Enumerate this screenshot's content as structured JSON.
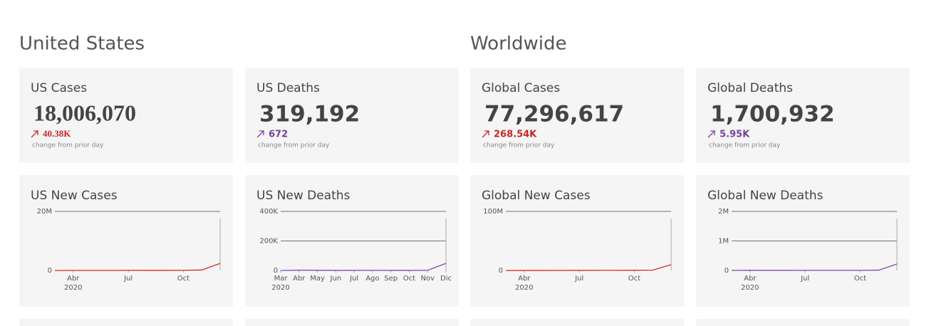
{
  "sections": [
    {
      "title": "United States"
    },
    {
      "title": "Worldwide"
    }
  ],
  "kpis": [
    {
      "title": "US Cases",
      "value": "18,006,070",
      "change": "40.38K",
      "note": "change from prior day",
      "color": "#c62828"
    },
    {
      "title": "US Deaths",
      "value": "319,192",
      "change": "672",
      "note": "change from prior day",
      "color": "#7b3fa0"
    },
    {
      "title": "Global Cases",
      "value": "77,296,617",
      "change": "268.54K",
      "note": "change from prior day",
      "color": "#c62828"
    },
    {
      "title": "Global Deaths",
      "value": "1,700,932",
      "change": "5.95K",
      "note": "change from prior day",
      "color": "#7b3fa0"
    }
  ],
  "chart_data": [
    {
      "type": "line",
      "title": "US New Cases",
      "x": [
        "2020-03",
        "2020-04",
        "2020-05",
        "2020-06",
        "2020-07",
        "2020-08",
        "2020-09",
        "2020-10",
        "2020-11",
        "2020-12"
      ],
      "series": [
        {
          "color": "#d62c1a",
          "values": [
            0,
            30000,
            25000,
            25000,
            65000,
            45000,
            40000,
            60000,
            160000,
            2400000
          ]
        }
      ],
      "xlim": [
        "2020-03",
        "2020-12"
      ],
      "xticks": [
        {
          "value": "2020-04",
          "label": "Abr"
        },
        {
          "value": "2020-07",
          "label": "Jul"
        },
        {
          "value": "2020-10",
          "label": "Oct"
        }
      ],
      "x_year_label": "2020",
      "ylim": [
        0,
        20000000
      ],
      "yticks": [
        0,
        {
          "value": 20000000,
          "label": "20M"
        }
      ]
    },
    {
      "type": "line",
      "title": "US New Deaths",
      "x": [
        "2020-03",
        "2020-04",
        "2020-05",
        "2020-06",
        "2020-07",
        "2020-08",
        "2020-09",
        "2020-10",
        "2020-11",
        "2020-12"
      ],
      "series": [
        {
          "color": "#7e4bb0",
          "values": [
            0,
            2000,
            1500,
            800,
            1000,
            1200,
            900,
            800,
            1200,
            48000
          ]
        }
      ],
      "xlim": [
        "2020-03",
        "2020-12"
      ],
      "xticks": [
        {
          "value": "2020-03",
          "label": "Mar"
        },
        {
          "value": "2020-04",
          "label": "Abr"
        },
        {
          "value": "2020-05",
          "label": "May"
        },
        {
          "value": "2020-06",
          "label": "Jun"
        },
        {
          "value": "2020-07",
          "label": "Jul"
        },
        {
          "value": "2020-08",
          "label": "Ago"
        },
        {
          "value": "2020-09",
          "label": "Sep"
        },
        {
          "value": "2020-10",
          "label": "Oct"
        },
        {
          "value": "2020-11",
          "label": "Nov"
        },
        {
          "value": "2020-12",
          "label": "Dic"
        }
      ],
      "x_year_label": "2020",
      "ylim": [
        0,
        400000
      ],
      "yticks": [
        0,
        {
          "value": 200000,
          "label": "200K"
        },
        {
          "value": 400000,
          "label": "400K"
        }
      ]
    },
    {
      "type": "line",
      "title": "Global New Cases",
      "x": [
        "2020-03",
        "2020-04",
        "2020-05",
        "2020-06",
        "2020-07",
        "2020-08",
        "2020-09",
        "2020-10",
        "2020-11",
        "2020-12"
      ],
      "series": [
        {
          "color": "#d62c1a",
          "values": [
            40000,
            80000,
            90000,
            150000,
            230000,
            260000,
            290000,
            380000,
            600000,
            10000000
          ]
        }
      ],
      "xlim": [
        "2020-03",
        "2020-12"
      ],
      "xticks": [
        {
          "value": "2020-04",
          "label": "Abr"
        },
        {
          "value": "2020-07",
          "label": "Jul"
        },
        {
          "value": "2020-10",
          "label": "Oct"
        }
      ],
      "x_year_label": "2020",
      "ylim": [
        0,
        100000000
      ],
      "yticks": [
        0,
        {
          "value": 100000000,
          "label": "100M"
        }
      ]
    },
    {
      "type": "line",
      "title": "Global New Deaths",
      "x": [
        "2020-03",
        "2020-04",
        "2020-05",
        "2020-06",
        "2020-07",
        "2020-08",
        "2020-09",
        "2020-10",
        "2020-11",
        "2020-12"
      ],
      "series": [
        {
          "color": "#7e4bb0",
          "values": [
            3000,
            7000,
            4500,
            4500,
            5500,
            6000,
            5500,
            6000,
            10000,
            220000
          ]
        }
      ],
      "xlim": [
        "2020-03",
        "2020-12"
      ],
      "xticks": [
        {
          "value": "2020-04",
          "label": "Abr"
        },
        {
          "value": "2020-07",
          "label": "Jul"
        },
        {
          "value": "2020-10",
          "label": "Oct"
        }
      ],
      "x_year_label": "2020",
      "ylim": [
        0,
        2000000
      ],
      "yticks": [
        0,
        {
          "value": 1000000,
          "label": "1M"
        },
        {
          "value": 2000000,
          "label": "2M"
        }
      ]
    }
  ]
}
